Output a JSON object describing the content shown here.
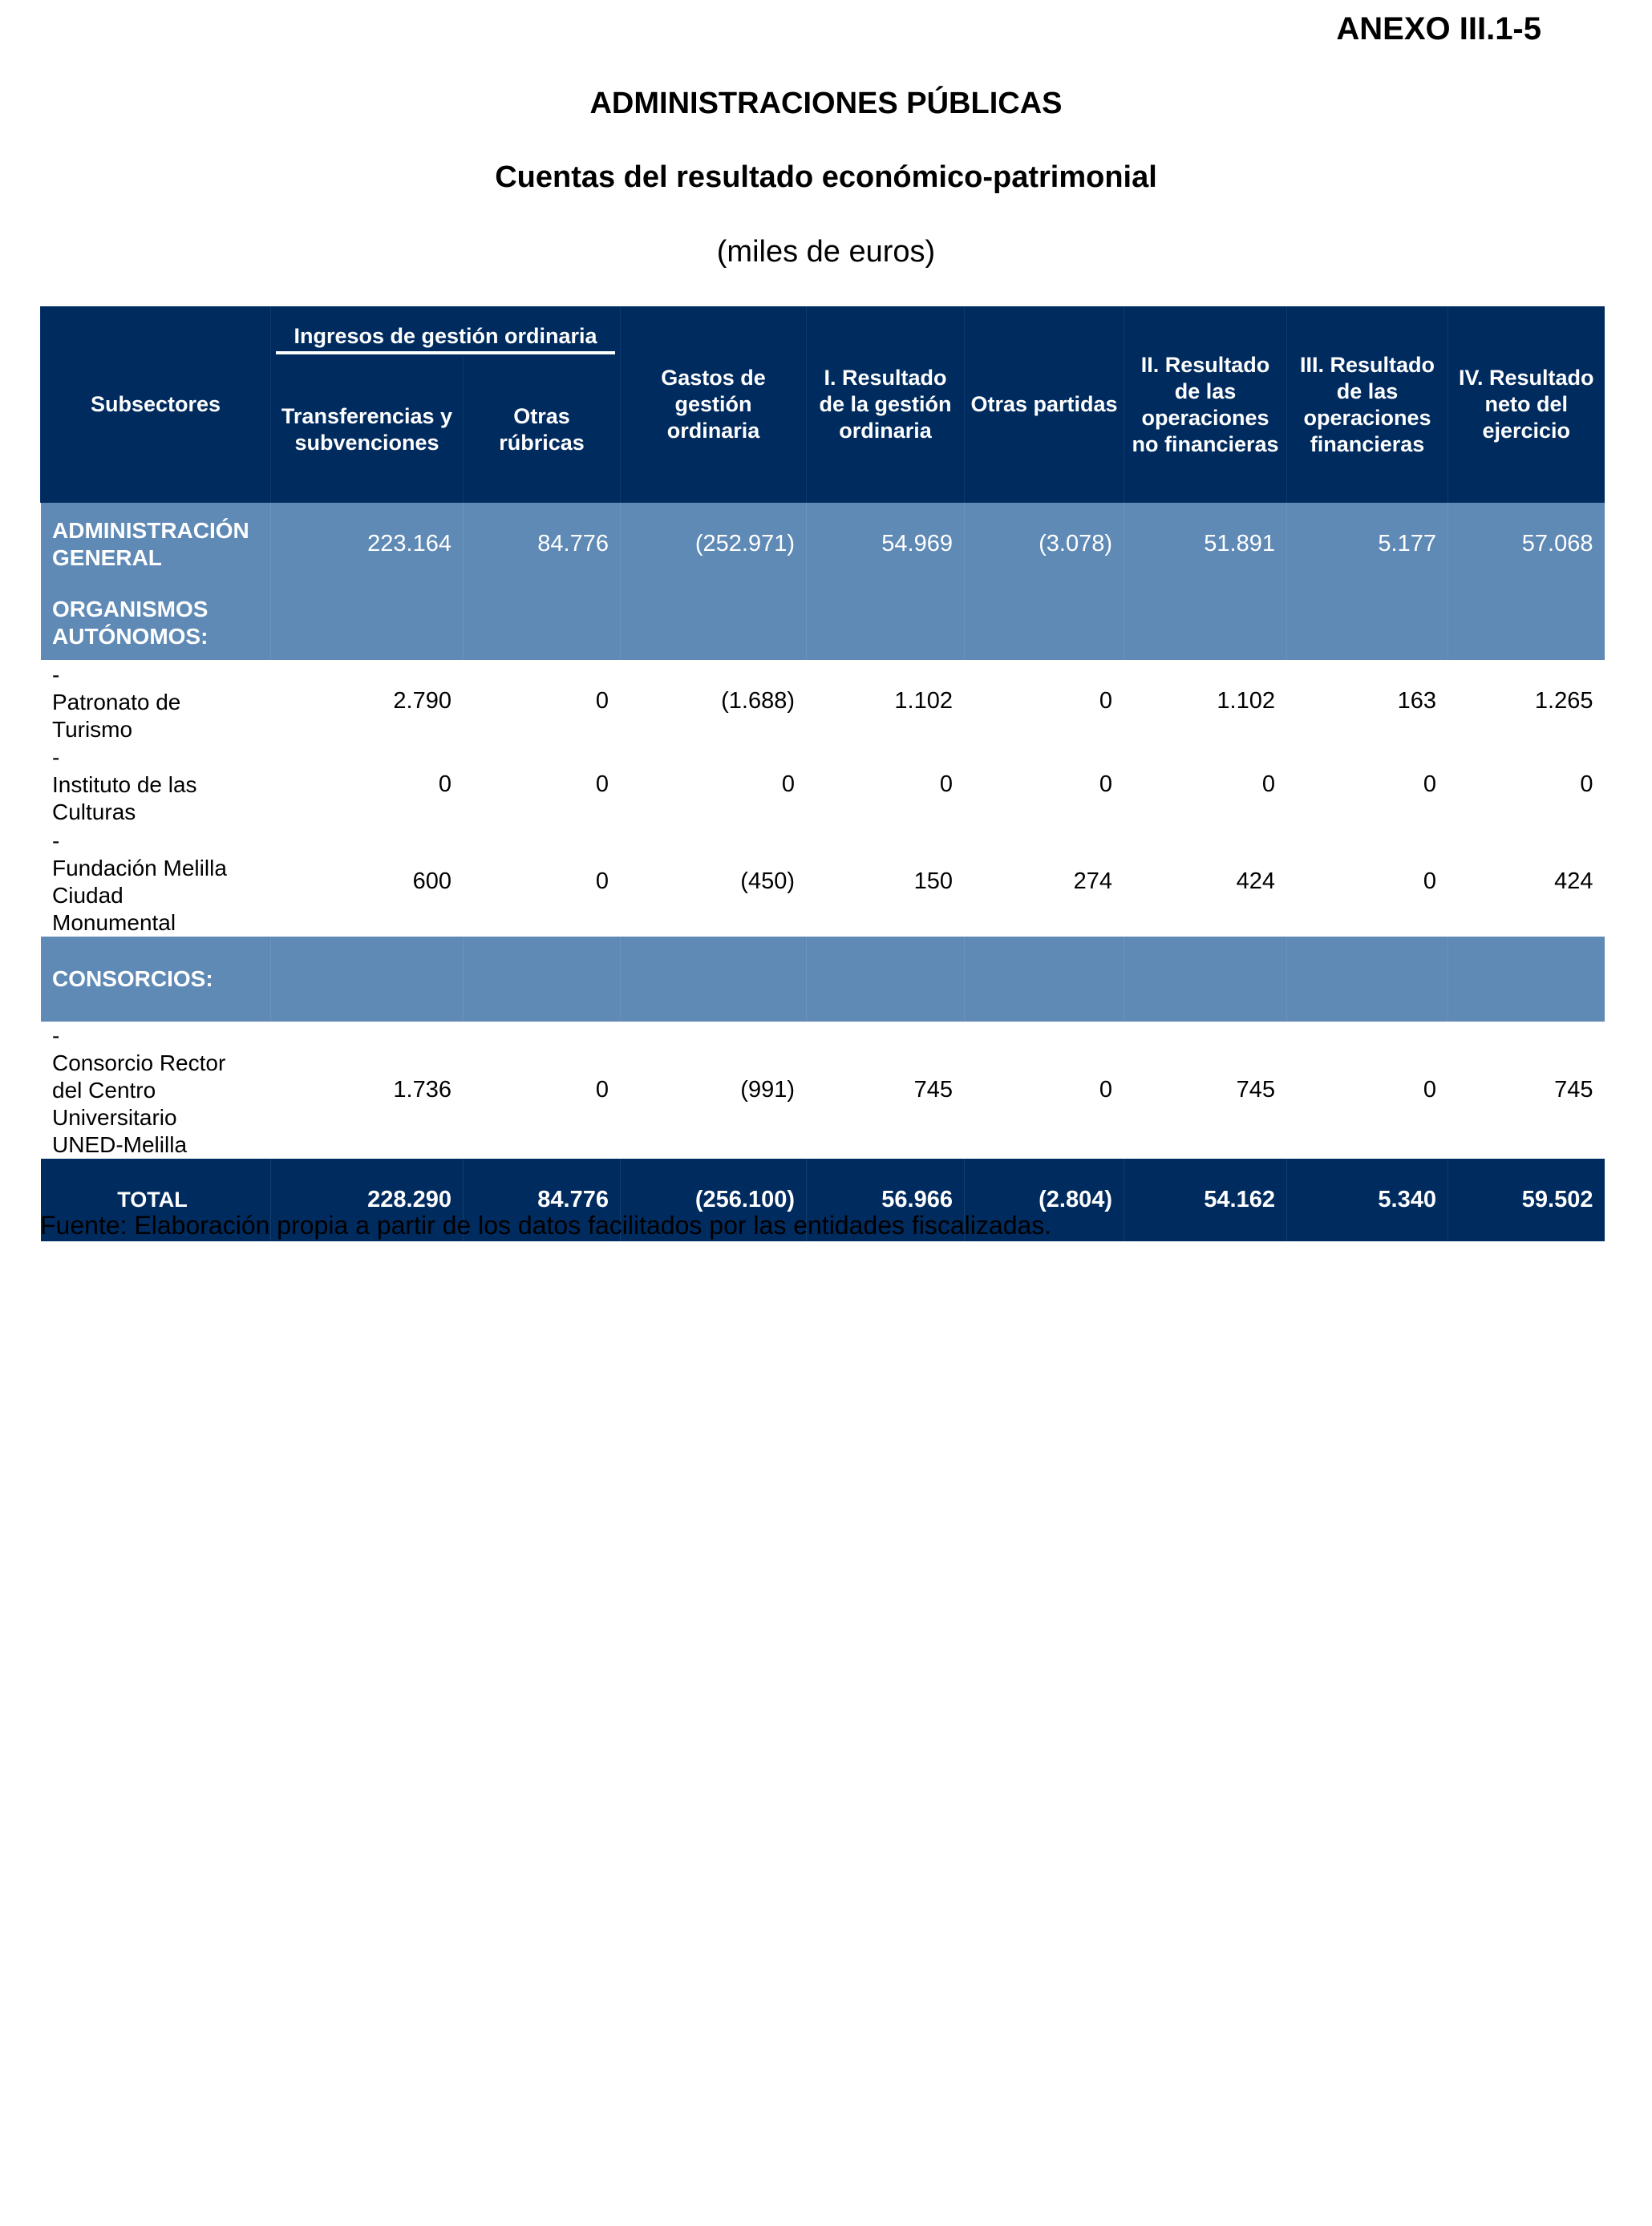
{
  "annex": "ANEXO III.1-5",
  "title": "ADMINISTRACIONES PÚBLICAS",
  "subtitle": "Cuentas del resultado económico-patrimonial",
  "units": "(miles de euros)",
  "colors": {
    "header_bg": "#002B5F",
    "highlight_bg": "#5F8AB5"
  },
  "headers": {
    "subsectores": "Subsectores",
    "ingresos_group": "Ingresos de gestión ordinaria",
    "transferencias": "Transferencias y subvenciones",
    "otras_rubricas": "Otras rúbricas",
    "gastos": "Gastos de gestión ordinaria",
    "res_gestion": "I. Resultado de la gestión ordinaria",
    "otras_partidas": "Otras partidas",
    "res_no_fin": "II. Resultado de las operaciones no financieras",
    "res_fin": "III. Resultado de las operaciones financieras",
    "res_neto": "IV. Resultado neto del ejercicio"
  },
  "rows": [
    {
      "label": "ADMINISTRACIÓN GENERAL",
      "values": [
        "223.164",
        "84.776",
        "(252.971)",
        "54.969",
        "(3.078)",
        "51.891",
        "5.177",
        "57.068"
      ]
    },
    {
      "label": "ORGANISMOS AUTÓNOMOS:"
    },
    {
      "dash": "-",
      "label": "Patronato de Turismo",
      "values": [
        "2.790",
        "0",
        "(1.688)",
        "1.102",
        "0",
        "1.102",
        "163",
        "1.265"
      ]
    },
    {
      "dash": "-",
      "label": "Instituto de las Culturas",
      "values": [
        "0",
        "0",
        "0",
        "0",
        "0",
        "0",
        "0",
        "0"
      ]
    },
    {
      "dash": "-",
      "label": "Fundación Melilla Ciudad Monumental",
      "values": [
        "600",
        "0",
        "(450)",
        "150",
        "274",
        "424",
        "0",
        "424"
      ]
    },
    {
      "label": "CONSORCIOS:"
    },
    {
      "dash": "-",
      "label": "Consorcio Rector del Centro Universitario UNED-Melilla",
      "values": [
        "1.736",
        "0",
        "(991)",
        "745",
        "0",
        "745",
        "0",
        "745"
      ]
    }
  ],
  "total": {
    "label": "TOTAL",
    "values": [
      "228.290",
      "84.776",
      "(256.100)",
      "56.966",
      "(2.804)",
      "54.162",
      "5.340",
      "59.502"
    ]
  },
  "footnote": "Fuente: Elaboración propia a partir de los datos facilitados por las entidades fiscalizadas."
}
